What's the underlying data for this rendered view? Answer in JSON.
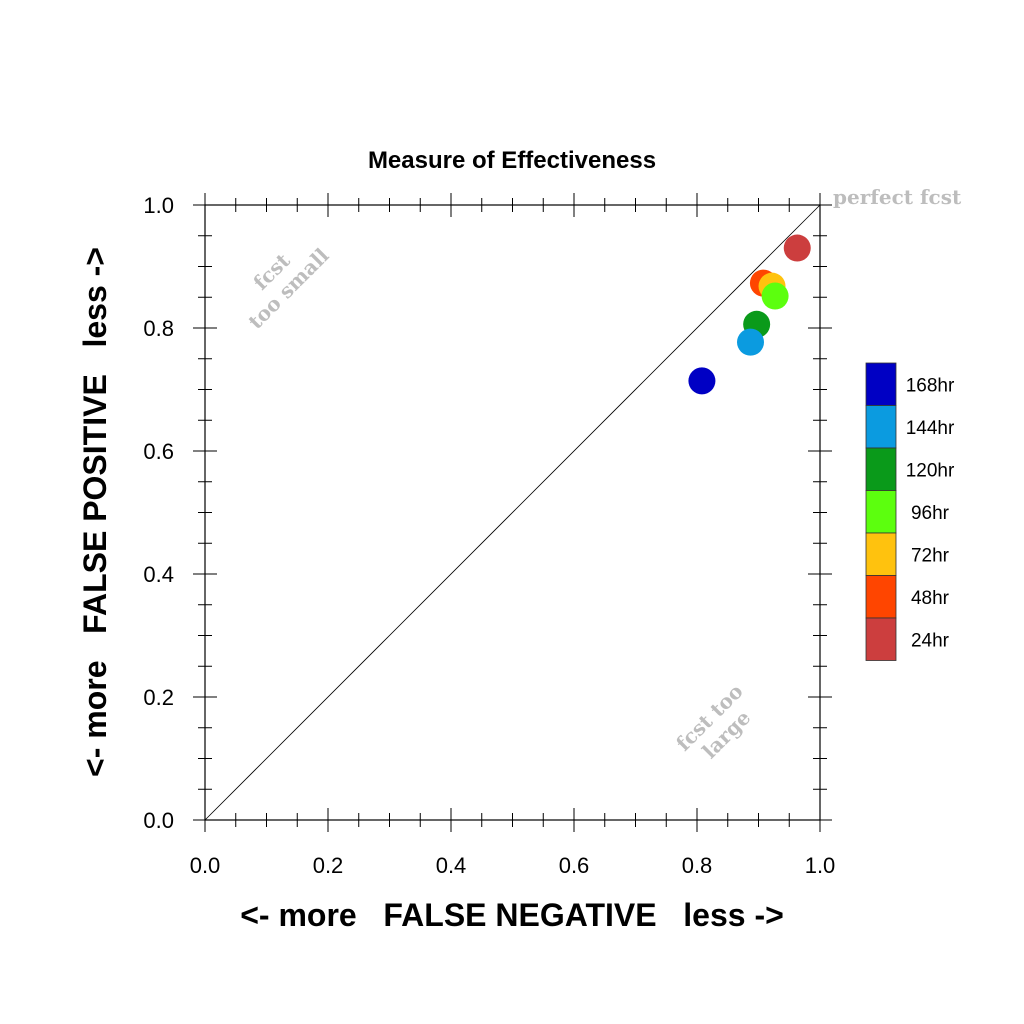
{
  "chart_data": {
    "type": "scatter",
    "title": "Measure of Effectiveness",
    "xlabel": "<- more   FALSE NEGATIVE   less ->",
    "ylabel": "<- more   FALSE POSITIVE   less ->",
    "xlim": [
      0.0,
      1.0
    ],
    "ylim": [
      0.0,
      1.0
    ],
    "xticks": [
      "0.0",
      "0.2",
      "0.4",
      "0.6",
      "0.8",
      "1.0"
    ],
    "yticks": [
      "0.0",
      "0.2",
      "0.4",
      "0.6",
      "0.8",
      "1.0"
    ],
    "grid": false,
    "diagonal_line": true,
    "annotations": {
      "perfect": "perfect fcst",
      "small_line1": "fcst",
      "small_line2": "too small",
      "large_line1": "fcst too",
      "large_line2": "large"
    },
    "legend_position": "right",
    "series": [
      {
        "name": "24hr",
        "color": "#cc3e3e",
        "x": 0.963,
        "y": 0.93
      },
      {
        "name": "48hr",
        "color": "#ff4500",
        "x": 0.908,
        "y": 0.873
      },
      {
        "name": "72hr",
        "color": "#ffc20e",
        "x": 0.922,
        "y": 0.868
      },
      {
        "name": "96hr",
        "color": "#5cff0e",
        "x": 0.927,
        "y": 0.852
      },
      {
        "name": "120hr",
        "color": "#0a9a1a",
        "x": 0.897,
        "y": 0.806
      },
      {
        "name": "144hr",
        "color": "#0b9be0",
        "x": 0.887,
        "y": 0.777
      },
      {
        "name": "168hr",
        "color": "#0000c4",
        "x": 0.808,
        "y": 0.714
      }
    ],
    "legend_order": [
      "168hr",
      "144hr",
      "120hr",
      "96hr",
      "72hr",
      "48hr",
      "24hr"
    ]
  }
}
